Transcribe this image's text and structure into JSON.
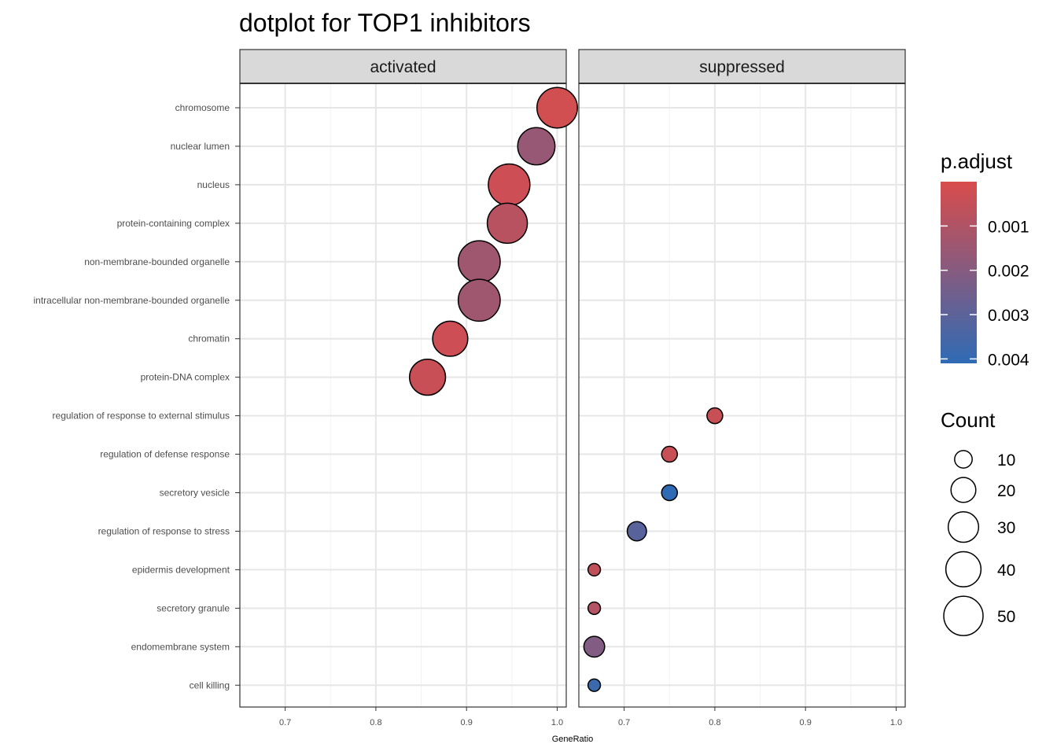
{
  "chart_data": {
    "type": "scatter",
    "title": "dotplot for TOP1 inhibitors",
    "xlabel": "GeneRatio",
    "ylabel": "",
    "xlim": [
      0.65,
      1.01
    ],
    "x_ticks": [
      0.7,
      0.8,
      0.9,
      1.0
    ],
    "x_tick_labels": [
      "0.7",
      "0.8",
      "0.9",
      "1.0"
    ],
    "grid": true,
    "facets": [
      {
        "name": "activated",
        "points": [
          {
            "term": "chromosome",
            "x": 1.0,
            "count": 53,
            "p_adjust": 0.0002
          },
          {
            "term": "nuclear lumen",
            "x": 0.977,
            "count": 45,
            "p_adjust": 0.0016
          },
          {
            "term": "nucleus",
            "x": 0.947,
            "count": 56,
            "p_adjust": 0.0003
          },
          {
            "term": "protein-containing complex",
            "x": 0.945,
            "count": 52,
            "p_adjust": 0.0008
          },
          {
            "term": "non-membrane-bounded organelle",
            "x": 0.914,
            "count": 57,
            "p_adjust": 0.0014
          },
          {
            "term": "intracellular non-membrane-bounded organelle",
            "x": 0.914,
            "count": 57,
            "p_adjust": 0.0014
          },
          {
            "term": "chromatin",
            "x": 0.882,
            "count": 40,
            "p_adjust": 0.0003
          },
          {
            "term": "protein-DNA complex",
            "x": 0.857,
            "count": 42,
            "p_adjust": 0.0004
          }
        ]
      },
      {
        "name": "suppressed",
        "points": [
          {
            "term": "regulation of response to external stimulus",
            "x": 0.8,
            "count": 8,
            "p_adjust": 0.0004
          },
          {
            "term": "regulation of defense response",
            "x": 0.75,
            "count": 8,
            "p_adjust": 0.0004
          },
          {
            "term": "secretory vesicle",
            "x": 0.75,
            "count": 8,
            "p_adjust": 0.0041
          },
          {
            "term": "regulation of response to stress",
            "x": 0.714,
            "count": 12,
            "p_adjust": 0.0031
          },
          {
            "term": "epidermis development",
            "x": 0.667,
            "count": 5,
            "p_adjust": 0.0006
          },
          {
            "term": "secretory granule",
            "x": 0.667,
            "count": 5,
            "p_adjust": 0.0009
          },
          {
            "term": "endomembrane system",
            "x": 0.667,
            "count": 14,
            "p_adjust": 0.0021
          },
          {
            "term": "cell killing",
            "x": 0.667,
            "count": 5,
            "p_adjust": 0.0038
          }
        ]
      }
    ],
    "categories": [
      "chromosome",
      "nuclear lumen",
      "nucleus",
      "protein-containing complex",
      "non-membrane-bounded organelle",
      "intracellular non-membrane-bounded organelle",
      "chromatin",
      "protein-DNA complex",
      "regulation of response to external stimulus",
      "regulation of defense response",
      "secretory vesicle",
      "regulation of response to stress",
      "epidermis development",
      "secretory granule",
      "endomembrane system",
      "cell killing"
    ],
    "color_legend": {
      "title": "p.adjust",
      "low_color": "#2f6bb5",
      "high_color": "#d94c4c",
      "breaks": [
        0.001,
        0.002,
        0.003,
        0.004
      ],
      "labels": [
        "0.001",
        "0.002",
        "0.003",
        "0.004"
      ],
      "range": [
        0.0,
        0.0041
      ]
    },
    "size_legend": {
      "title": "Count",
      "breaks": [
        10,
        20,
        30,
        40,
        50
      ],
      "labels": [
        "10",
        "20",
        "30",
        "40",
        "50"
      ]
    },
    "legend_position": "right"
  }
}
